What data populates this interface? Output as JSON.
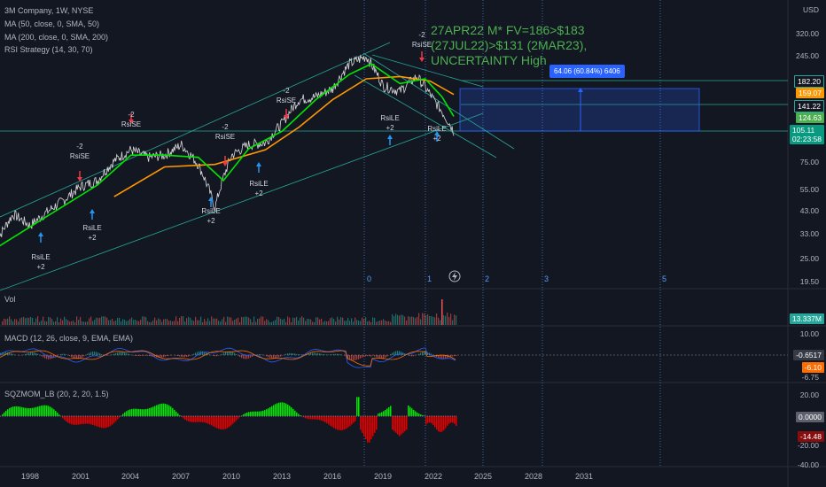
{
  "legend": {
    "symbol": "3M Company, 1W, NYSE",
    "ma50": "MA (50, close, 0, SMA, 50)",
    "ma200": "MA (200, close, 0, SMA, 200)",
    "rsi": "RSI Strategy (14, 30, 70)",
    "vol": "Vol",
    "macd": "MACD (12, 26, close, 9, EMA, EMA)",
    "sqz": "SQZMOM_LB (20, 2, 20, 1.5)"
  },
  "headline": "27APR22 M* FV=186>$183 (27JUL22)>$131 (2MAR23), UNCERTAINTY High",
  "measure_label": "64.06 (60.84%) 6406",
  "currency": "USD",
  "colors": {
    "bg": "#131722",
    "green": "#4caf50",
    "ma_green": "#00e600",
    "ma_orange": "#ff9800",
    "price": "#d9d9d9",
    "channel": "#26a69a",
    "blue": "#2962ff",
    "red": "#f23645",
    "sell": "#f23645",
    "buy": "#2196f3"
  },
  "price_axis_ticks": [
    "320.00",
    "245.00",
    "75.00",
    "55.00",
    "43.00",
    "33.00",
    "25.00",
    "19.50"
  ],
  "price_labels": [
    {
      "text": "182.20",
      "bg": "#131722",
      "border": "#26a69a"
    },
    {
      "text": "159.07",
      "bg": "#ff9800"
    },
    {
      "text": "141.22",
      "bg": "#131722",
      "border": "#26a69a"
    },
    {
      "text": "124.63",
      "bg": "#4caf50"
    },
    {
      "text": "105.11",
      "sub": "02:23:58",
      "bg": "#089981"
    }
  ],
  "vol_label": "13.337M",
  "macd_ticks": [
    "10.00",
    "-6.75"
  ],
  "macd_labels": [
    {
      "text": "-0.6517",
      "bg": "#363a45"
    },
    {
      "text": "-6.10",
      "bg": "#ff6d00"
    }
  ],
  "sqz_ticks": [
    "20.00",
    "-20.00",
    "-40.00"
  ],
  "sqz_labels": [
    {
      "text": "0.0000",
      "bg": "#5d606b"
    },
    {
      "text": "-14.48",
      "bg": "#880e0e"
    }
  ],
  "x_axis_labels": [
    "1998",
    "2001",
    "2004",
    "2007",
    "2010",
    "2013",
    "2016",
    "2019",
    "2022",
    "2025",
    "2028",
    "2031"
  ],
  "fib_time_labels": [
    "0",
    "1",
    "2",
    "3",
    "5"
  ],
  "signals": [
    {
      "type": "sell",
      "label": "-2\nRsiSE"
    },
    {
      "type": "sell",
      "label": "-2\nRsiSE"
    },
    {
      "type": "sell",
      "label": "-2\nRsiSE"
    },
    {
      "type": "sell",
      "label": "-2\nRsiSE"
    },
    {
      "type": "sell",
      "label": "-2\nRsiSE"
    },
    {
      "type": "sell",
      "label": "-2\nRsiSE"
    },
    {
      "type": "buy",
      "label": "RsiLE\n+2"
    },
    {
      "type": "buy",
      "label": "RsiLE\n+2"
    },
    {
      "type": "buy",
      "label": "RsiLE\n+2"
    },
    {
      "type": "buy",
      "label": "RsiLE\n+2"
    },
    {
      "type": "buy",
      "label": "RsiLE\n+2"
    },
    {
      "type": "buy",
      "label": "RsiLE\n+2"
    }
  ],
  "chart_data": {
    "type": "line",
    "x_unit": "year",
    "y_scale": "log",
    "ylim": [
      19.5,
      400
    ],
    "series": [
      {
        "values_x": [
          1996,
          1997,
          1998,
          1999,
          2000,
          2001,
          2002,
          2003,
          2004,
          2005,
          2006,
          2007,
          2008,
          2009,
          2010,
          2011,
          2012,
          2013,
          2014,
          2015,
          2016,
          2017,
          2018,
          2019,
          2020,
          2021,
          2022,
          2023.2
        ],
        "values": [
          30,
          41,
          36,
          42,
          48,
          56,
          60,
          75,
          85,
          78,
          80,
          90,
          72,
          44,
          80,
          90,
          92,
          115,
          150,
          155,
          170,
          225,
          245,
          175,
          165,
          195,
          150,
          105
        ]
      }
    ],
    "ma50": [
      [
        1996,
        28
      ],
      [
        1999,
        40
      ],
      [
        2002,
        57
      ],
      [
        2004,
        80
      ],
      [
        2006,
        80
      ],
      [
        2008,
        78
      ],
      [
        2009.5,
        60
      ],
      [
        2011,
        86
      ],
      [
        2013,
        105
      ],
      [
        2015,
        150
      ],
      [
        2017,
        200
      ],
      [
        2018.3,
        225
      ],
      [
        2020,
        180
      ],
      [
        2021.5,
        190
      ],
      [
        2022.5,
        155
      ],
      [
        2023.2,
        124
      ]
    ],
    "ma200": [
      [
        2003,
        50
      ],
      [
        2006,
        70
      ],
      [
        2009,
        72
      ],
      [
        2012,
        85
      ],
      [
        2014,
        110
      ],
      [
        2016,
        150
      ],
      [
        2018,
        190
      ],
      [
        2020,
        195
      ],
      [
        2021.8,
        185
      ],
      [
        2023.2,
        159
      ]
    ]
  }
}
